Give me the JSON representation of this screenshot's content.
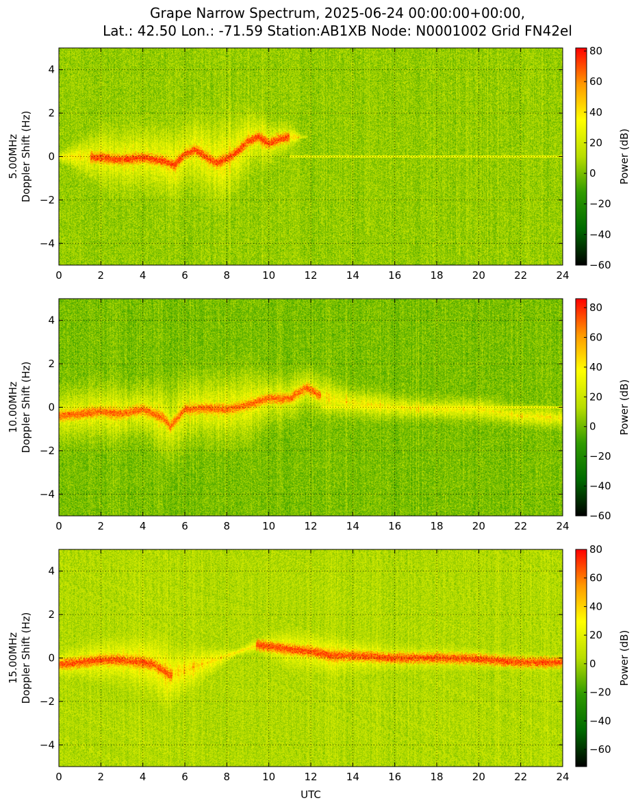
{
  "title": {
    "line1": "Grape Narrow Spectrum, 2025-06-24 00:00:00+00:00,",
    "line2": "Lat.: 42.50 Lon.: -71.59 Station:AB1XB Node: N0001002 Grid FN42el"
  },
  "xlabel": "UTC",
  "colors": {
    "colormap": [
      "#000000",
      "#006a00",
      "#2f9a00",
      "#b8dd00",
      "#ffff00",
      "#ff9900",
      "#ff0000"
    ],
    "grid": "#000000",
    "background": "#ffffff"
  },
  "chart_data": [
    {
      "type": "heatmap",
      "panel": "5.00 MHz",
      "ylabel_freq": "5.00MHz",
      "ylabel": "Doppler Shift (Hz)",
      "xlim": [
        0,
        24
      ],
      "ylim": [
        -5,
        5
      ],
      "x_ticks": [
        0,
        2,
        4,
        6,
        8,
        10,
        12,
        14,
        16,
        18,
        20,
        22,
        24
      ],
      "y_ticks": [
        -4,
        -2,
        0,
        2,
        4
      ],
      "colorbar": {
        "label": "Power (dB)",
        "min": -60,
        "max": 82,
        "ticks": [
          -60,
          -40,
          -20,
          0,
          20,
          40,
          60,
          80
        ]
      },
      "grid": true,
      "background_db": 5,
      "trace": [
        [
          0,
          0
        ],
        [
          2,
          -0.05
        ],
        [
          3,
          -0.15
        ],
        [
          4,
          -0.05
        ],
        [
          5,
          -0.2
        ],
        [
          5.5,
          -0.4
        ],
        [
          6,
          0.1
        ],
        [
          6.5,
          0.3
        ],
        [
          7,
          0.0
        ],
        [
          7.5,
          -0.3
        ],
        [
          8,
          -0.1
        ],
        [
          8.5,
          0.2
        ],
        [
          9,
          0.7
        ],
        [
          9.5,
          0.9
        ],
        [
          10,
          0.6
        ],
        [
          10.5,
          0.8
        ],
        [
          11,
          0.9
        ]
      ],
      "trace_active": [
        1.5,
        11
      ],
      "trace_db": 80,
      "spread": [
        [
          0,
          0.3
        ],
        [
          1,
          1.2
        ],
        [
          2,
          2.2
        ],
        [
          4,
          2.3
        ],
        [
          6,
          2.6
        ],
        [
          8,
          3.0
        ],
        [
          10,
          1.5
        ],
        [
          11,
          0.9
        ],
        [
          11.5,
          0.2
        ],
        [
          12,
          0
        ]
      ],
      "spread_db": 34,
      "weak_line": {
        "from": 11,
        "to": 24,
        "y": 0,
        "db": 30
      }
    },
    {
      "type": "heatmap",
      "panel": "10.00 MHz",
      "ylabel_freq": "10.00MHz",
      "ylabel": "Doppler Shift (Hz)",
      "xlim": [
        0,
        24
      ],
      "ylim": [
        -5,
        5
      ],
      "x_ticks": [
        0,
        2,
        4,
        6,
        8,
        10,
        12,
        14,
        16,
        18,
        20,
        22,
        24
      ],
      "y_ticks": [
        -4,
        -2,
        0,
        2,
        4
      ],
      "colorbar": {
        "label": "Power (dB)",
        "min": -60,
        "max": 86,
        "ticks": [
          -60,
          -40,
          -20,
          0,
          20,
          40,
          60,
          80
        ]
      },
      "grid": true,
      "background_db": 2,
      "trace": [
        [
          0,
          -0.4
        ],
        [
          1,
          -0.3
        ],
        [
          2,
          -0.2
        ],
        [
          3,
          -0.3
        ],
        [
          4,
          -0.1
        ],
        [
          5,
          -0.5
        ],
        [
          5.3,
          -0.9
        ],
        [
          6,
          -0.1
        ],
        [
          7,
          -0.05
        ],
        [
          8,
          -0.1
        ],
        [
          9,
          0.1
        ],
        [
          10,
          0.4
        ],
        [
          11,
          0.4
        ],
        [
          11.8,
          0.9
        ],
        [
          12.5,
          0.5
        ],
        [
          14,
          0.2
        ],
        [
          16,
          0.0
        ],
        [
          18,
          -0.1
        ],
        [
          20,
          -0.1
        ],
        [
          22,
          -0.4
        ],
        [
          24,
          -0.5
        ]
      ],
      "trace_active": [
        0,
        12.5
      ],
      "trace_db": 78,
      "spread": [
        [
          0,
          2.0
        ],
        [
          2,
          2.2
        ],
        [
          4,
          2.0
        ],
        [
          5.5,
          3.0
        ],
        [
          7,
          2.5
        ],
        [
          9,
          2.8
        ],
        [
          10,
          1.8
        ],
        [
          12,
          1.6
        ],
        [
          14,
          1.2
        ],
        [
          16,
          1.0
        ],
        [
          18,
          0.8
        ],
        [
          20,
          0.9
        ],
        [
          22,
          0.8
        ],
        [
          24,
          0.8
        ]
      ],
      "spread_db": 38,
      "weak_line": {
        "from": 12.5,
        "to": 24,
        "y": 0,
        "db": 36
      }
    },
    {
      "type": "heatmap",
      "panel": "15.00 MHz",
      "ylabel_freq": "15.00MHz",
      "ylabel": "Doppler Shift (Hz)",
      "xlim": [
        0,
        24
      ],
      "ylim": [
        -5,
        5
      ],
      "x_ticks": [
        0,
        2,
        4,
        6,
        8,
        10,
        12,
        14,
        16,
        18,
        20,
        22,
        24
      ],
      "y_ticks": [
        -4,
        -2,
        0,
        2,
        4
      ],
      "colorbar": {
        "label": "Power (dB)",
        "min": -72,
        "max": 80,
        "ticks": [
          -60,
          -40,
          -20,
          0,
          20,
          40,
          60,
          80
        ]
      },
      "grid": true,
      "background_db": 4,
      "trace": [
        [
          0,
          -0.3
        ],
        [
          1,
          -0.2
        ],
        [
          2,
          -0.1
        ],
        [
          3,
          -0.1
        ],
        [
          4,
          -0.2
        ],
        [
          4.5,
          -0.3
        ],
        [
          5,
          -0.6
        ],
        [
          5.3,
          -0.8
        ],
        [
          9.5,
          0.6
        ],
        [
          11,
          0.4
        ],
        [
          12,
          0.3
        ],
        [
          13,
          0.1
        ],
        [
          14,
          0.1
        ],
        [
          16,
          0.0
        ],
        [
          18,
          0.0
        ],
        [
          20,
          -0.05
        ],
        [
          22,
          -0.2
        ],
        [
          24,
          -0.2
        ]
      ],
      "trace_active": [
        0,
        5.4
      ],
      "trace2_active": [
        9.4,
        24
      ],
      "trace_db": 76,
      "spread": [
        [
          0,
          0.8
        ],
        [
          2,
          1.4
        ],
        [
          4,
          1.6
        ],
        [
          5,
          2.2
        ],
        [
          6,
          1.5
        ],
        [
          7.5,
          0.8
        ],
        [
          8.5,
          0.2
        ],
        [
          9.5,
          0.5
        ],
        [
          11,
          1.3
        ],
        [
          13,
          1.3
        ],
        [
          15,
          0.9
        ],
        [
          17,
          0.8
        ],
        [
          19,
          0.7
        ],
        [
          21,
          0.6
        ],
        [
          24,
          0.5
        ]
      ],
      "spread_db": 36
    }
  ]
}
